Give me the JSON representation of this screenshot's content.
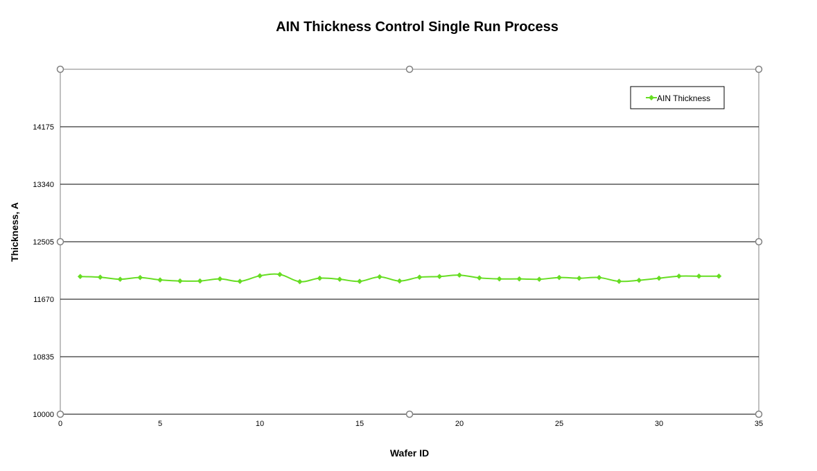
{
  "chart_data": {
    "type": "line",
    "title": "AIN Thickness Control Single Run Process",
    "xlabel": "Wafer ID",
    "ylabel": "Thickness, A",
    "xlim": [
      0,
      35
    ],
    "ylim": [
      10000,
      15010
    ],
    "x_ticks": [
      0,
      5,
      10,
      15,
      20,
      25,
      30,
      35
    ],
    "y_ticks": [
      10000,
      10835,
      11670,
      12505,
      13340,
      14175
    ],
    "grid": "horizontal",
    "legend_position": "top-right",
    "series": [
      {
        "name": "AIN Thickness",
        "color": "#66dd22",
        "marker": "diamond",
        "x": [
          1,
          2,
          3,
          4,
          5,
          6,
          7,
          8,
          9,
          10,
          11,
          12,
          13,
          14,
          15,
          16,
          17,
          18,
          19,
          20,
          21,
          22,
          23,
          24,
          25,
          26,
          27,
          28,
          29,
          30,
          31,
          32,
          33
        ],
        "values": [
          12000,
          11990,
          11960,
          11985,
          11950,
          11935,
          11935,
          11965,
          11930,
          12010,
          12030,
          11925,
          11975,
          11960,
          11930,
          11995,
          11935,
          11990,
          12000,
          12020,
          11980,
          11965,
          11965,
          11960,
          11985,
          11975,
          11985,
          11930,
          11945,
          11975,
          12005,
          12005,
          12005
        ]
      }
    ]
  },
  "colors": {
    "plot_border": "#808080",
    "gridline": "#000000",
    "handle": "#808080"
  }
}
